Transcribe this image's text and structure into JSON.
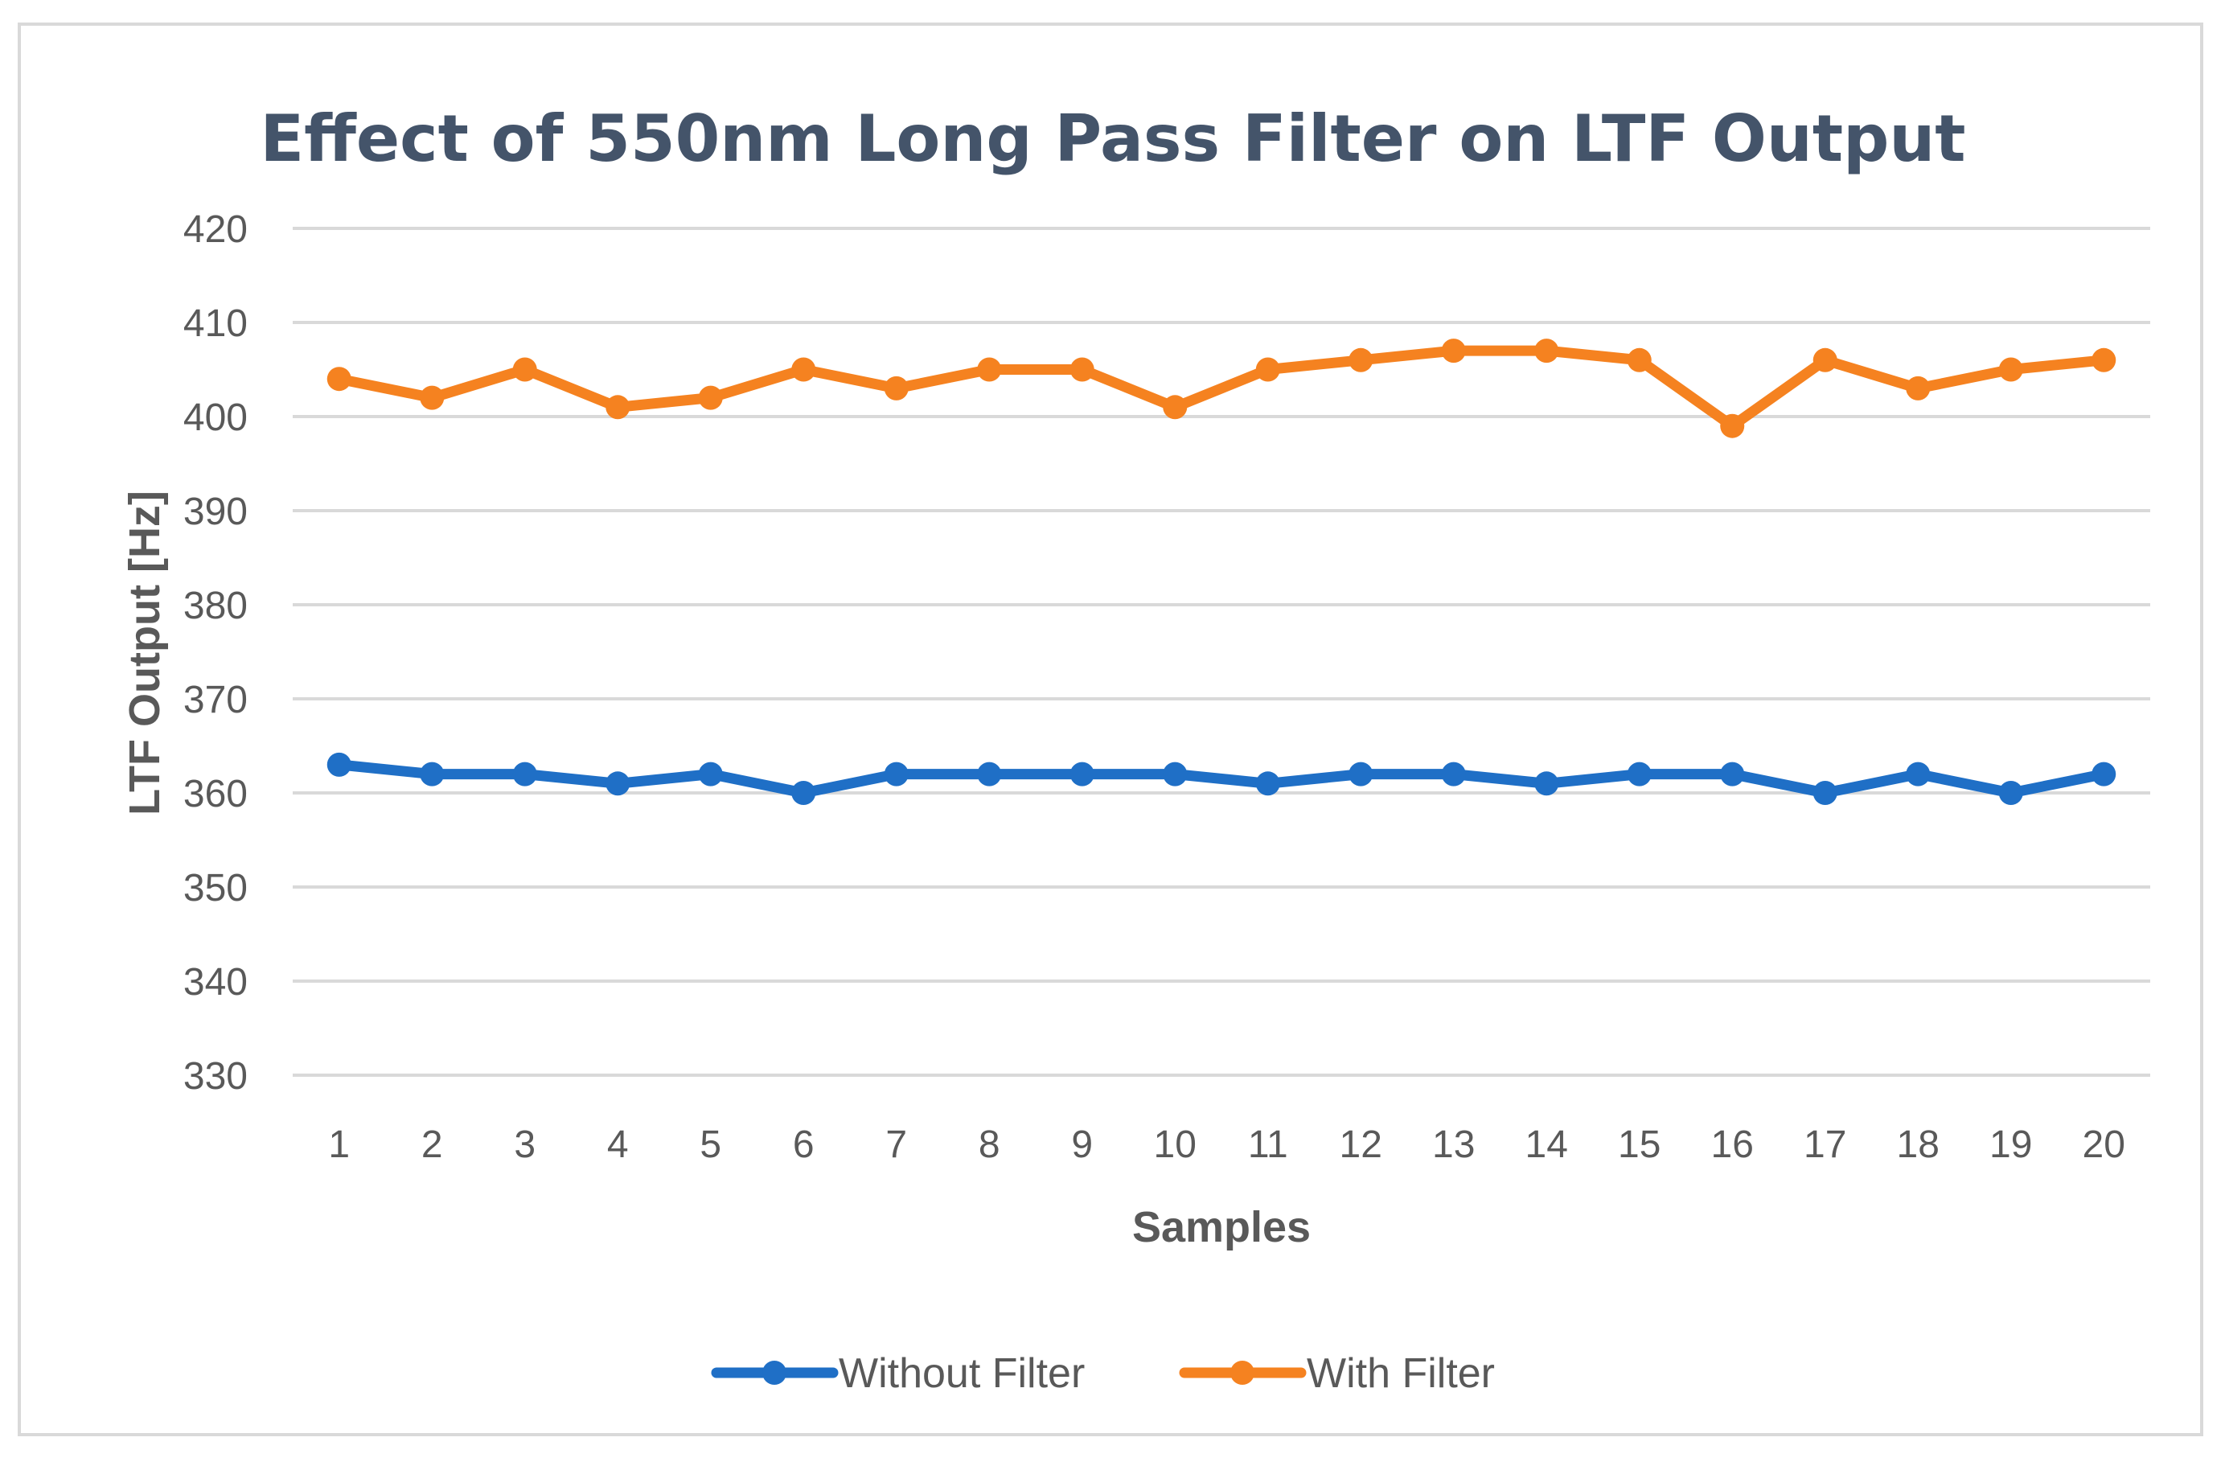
{
  "chart_data": {
    "type": "line",
    "title": "Effect of 550nm Long Pass Filter on LTF Output",
    "xlabel": "Samples",
    "ylabel": "LTF Output [Hz]",
    "categories": [
      "1",
      "2",
      "3",
      "4",
      "5",
      "6",
      "7",
      "8",
      "9",
      "10",
      "11",
      "12",
      "13",
      "14",
      "15",
      "16",
      "17",
      "18",
      "19",
      "20"
    ],
    "ylim": [
      330,
      420
    ],
    "yticks": [
      330,
      340,
      350,
      360,
      370,
      380,
      390,
      400,
      410,
      420
    ],
    "grid": true,
    "legend_position": "bottom",
    "series": [
      {
        "name": "Without Filter",
        "color": "#1f6fc6",
        "values": [
          363,
          362,
          362,
          361,
          362,
          360,
          362,
          362,
          362,
          362,
          361,
          362,
          362,
          361,
          362,
          362,
          360,
          362,
          360,
          362
        ]
      },
      {
        "name": "With Filter",
        "color": "#f58220",
        "values": [
          404,
          402,
          405,
          401,
          402,
          405,
          403,
          405,
          405,
          401,
          405,
          406,
          407,
          407,
          406,
          399,
          406,
          403,
          405,
          406
        ]
      }
    ]
  }
}
